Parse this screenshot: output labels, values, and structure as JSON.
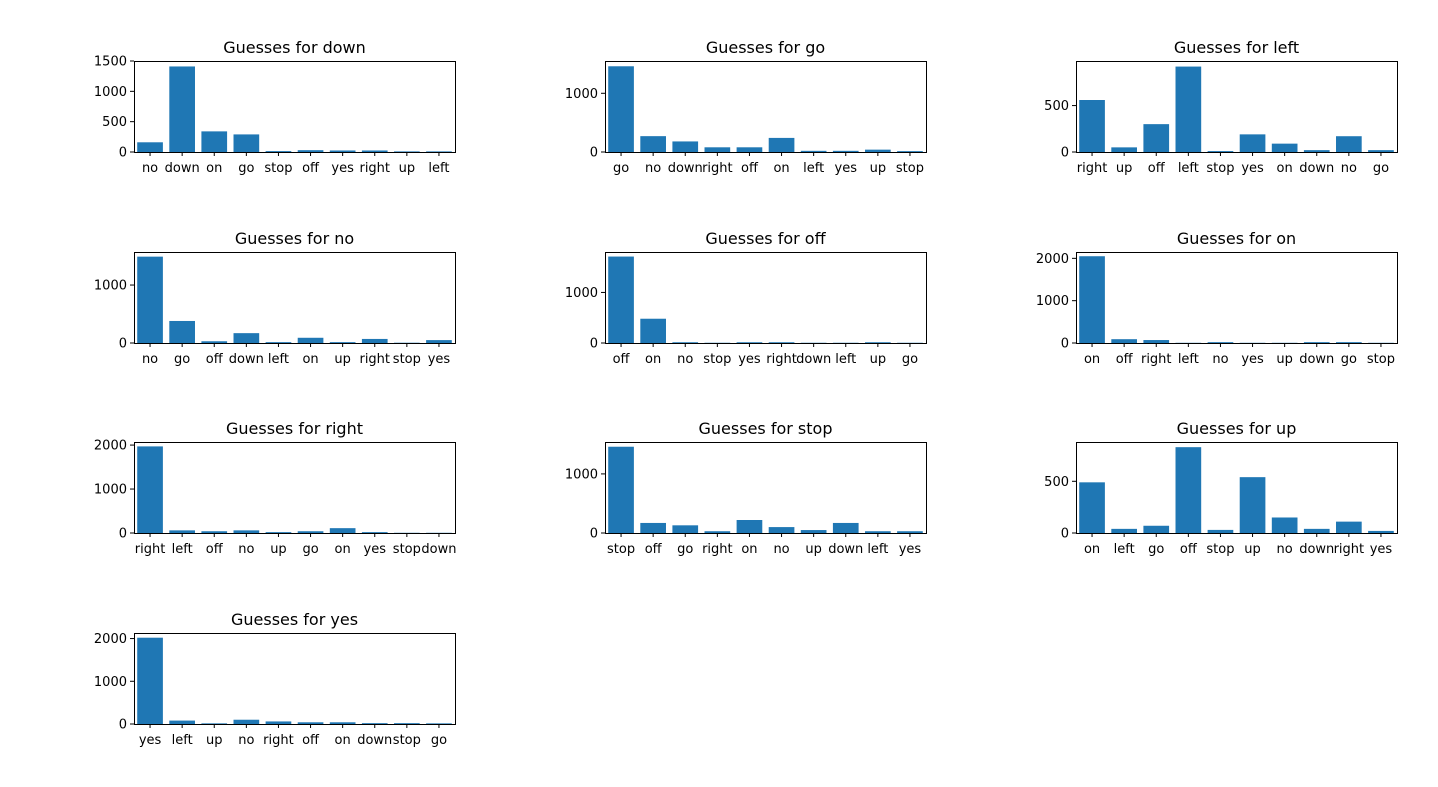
{
  "colors": {
    "bar": "#1f77b4",
    "axis": "#000000",
    "background": "#ffffff"
  },
  "chart_data": [
    {
      "type": "bar",
      "title": "Guesses for down",
      "categories": [
        "no",
        "down",
        "on",
        "go",
        "stop",
        "off",
        "yes",
        "right",
        "up",
        "left"
      ],
      "values": [
        160,
        1410,
        340,
        290,
        15,
        30,
        25,
        25,
        10,
        10
      ],
      "ylim": [
        0,
        1500
      ],
      "yticks": [
        0,
        500,
        1000,
        1500
      ],
      "xlabel": "",
      "ylabel": ""
    },
    {
      "type": "bar",
      "title": "Guesses for go",
      "categories": [
        "go",
        "no",
        "down",
        "right",
        "off",
        "on",
        "left",
        "yes",
        "up",
        "stop"
      ],
      "values": [
        1460,
        270,
        180,
        80,
        80,
        240,
        20,
        20,
        40,
        15
      ],
      "ylim": [
        0,
        1550
      ],
      "yticks": [
        0,
        1000
      ],
      "xlabel": "",
      "ylabel": ""
    },
    {
      "type": "bar",
      "title": "Guesses for left",
      "categories": [
        "right",
        "up",
        "off",
        "left",
        "stop",
        "yes",
        "on",
        "down",
        "no",
        "go"
      ],
      "values": [
        560,
        50,
        300,
        920,
        10,
        190,
        90,
        20,
        170,
        20
      ],
      "ylim": [
        0,
        980
      ],
      "yticks": [
        0,
        500
      ],
      "xlabel": "",
      "ylabel": ""
    },
    {
      "type": "bar",
      "title": "Guesses for no",
      "categories": [
        "no",
        "go",
        "off",
        "down",
        "left",
        "on",
        "up",
        "right",
        "stop",
        "yes"
      ],
      "values": [
        1490,
        380,
        30,
        170,
        15,
        90,
        15,
        70,
        5,
        50
      ],
      "ylim": [
        0,
        1570
      ],
      "yticks": [
        0,
        1000
      ],
      "xlabel": "",
      "ylabel": ""
    },
    {
      "type": "bar",
      "title": "Guesses for off",
      "categories": [
        "off",
        "on",
        "no",
        "stop",
        "yes",
        "right",
        "down",
        "left",
        "up",
        "go"
      ],
      "values": [
        1710,
        480,
        15,
        5,
        15,
        15,
        5,
        5,
        15,
        5
      ],
      "ylim": [
        0,
        1800
      ],
      "yticks": [
        0,
        1000
      ],
      "xlabel": "",
      "ylabel": ""
    },
    {
      "type": "bar",
      "title": "Guesses for on",
      "categories": [
        "on",
        "off",
        "right",
        "left",
        "no",
        "yes",
        "up",
        "down",
        "go",
        "stop"
      ],
      "values": [
        2050,
        90,
        70,
        5,
        20,
        5,
        5,
        20,
        20,
        5
      ],
      "ylim": [
        0,
        2150
      ],
      "yticks": [
        0,
        1000,
        2000
      ],
      "xlabel": "",
      "ylabel": ""
    },
    {
      "type": "bar",
      "title": "Guesses for right",
      "categories": [
        "right",
        "left",
        "off",
        "no",
        "up",
        "go",
        "on",
        "yes",
        "stop",
        "down"
      ],
      "values": [
        1970,
        60,
        40,
        60,
        20,
        40,
        110,
        20,
        5,
        5
      ],
      "ylim": [
        0,
        2070
      ],
      "yticks": [
        0,
        1000,
        2000
      ],
      "xlabel": "",
      "ylabel": ""
    },
    {
      "type": "bar",
      "title": "Guesses for stop",
      "categories": [
        "stop",
        "off",
        "go",
        "right",
        "on",
        "no",
        "up",
        "down",
        "left",
        "yes"
      ],
      "values": [
        1460,
        170,
        130,
        30,
        220,
        100,
        50,
        170,
        30,
        30
      ],
      "ylim": [
        0,
        1540
      ],
      "yticks": [
        0,
        1000
      ],
      "xlabel": "",
      "ylabel": ""
    },
    {
      "type": "bar",
      "title": "Guesses for up",
      "categories": [
        "on",
        "left",
        "go",
        "off",
        "stop",
        "up",
        "no",
        "down",
        "right",
        "yes"
      ],
      "values": [
        490,
        40,
        70,
        830,
        30,
        540,
        150,
        40,
        110,
        20
      ],
      "ylim": [
        0,
        880
      ],
      "yticks": [
        0,
        500
      ],
      "xlabel": "",
      "ylabel": ""
    },
    {
      "type": "bar",
      "title": "Guesses for yes",
      "categories": [
        "yes",
        "left",
        "up",
        "no",
        "right",
        "off",
        "on",
        "down",
        "stop",
        "go"
      ],
      "values": [
        2020,
        80,
        15,
        100,
        60,
        40,
        40,
        20,
        20,
        15
      ],
      "ylim": [
        0,
        2130
      ],
      "yticks": [
        0,
        1000,
        2000
      ],
      "xlabel": "",
      "ylabel": ""
    }
  ]
}
